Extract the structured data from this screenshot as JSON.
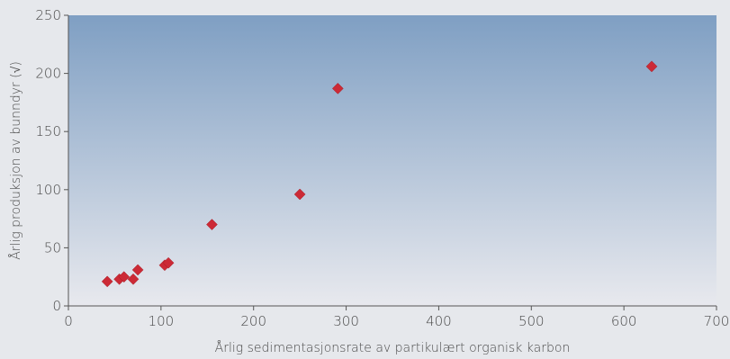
{
  "chart_data": {
    "type": "scatter",
    "title": "",
    "xlabel": "Årlig sedimentasjonsrate av partikulært organisk karbon",
    "ylabel": "Årlig produksjon av bunndyr (√)",
    "xlim": [
      0,
      700
    ],
    "ylim": [
      0,
      250
    ],
    "x_ticks": [
      "0",
      "100",
      "200",
      "300",
      "400",
      "500",
      "600",
      "700"
    ],
    "y_ticks": [
      "0",
      "50",
      "100",
      "150",
      "200",
      "250"
    ],
    "grid": false,
    "marker": "diamond",
    "marker_color": "#cc2a36",
    "plot_gradient_top": "#7f9fc3",
    "plot_gradient_bottom": "#e8e9ee",
    "points": [
      {
        "x": 42,
        "y": 21
      },
      {
        "x": 55,
        "y": 23
      },
      {
        "x": 60,
        "y": 25
      },
      {
        "x": 70,
        "y": 23
      },
      {
        "x": 75,
        "y": 31
      },
      {
        "x": 104,
        "y": 35
      },
      {
        "x": 108,
        "y": 37
      },
      {
        "x": 155,
        "y": 70
      },
      {
        "x": 250,
        "y": 96
      },
      {
        "x": 291,
        "y": 187
      },
      {
        "x": 630,
        "y": 206
      }
    ]
  }
}
